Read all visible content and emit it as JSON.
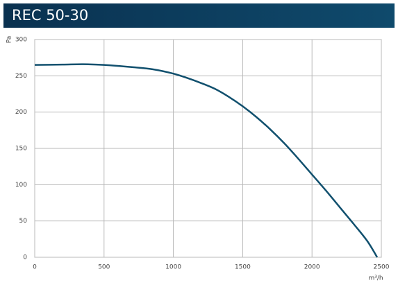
{
  "chart_data": {
    "type": "line",
    "title": "REC 50-30",
    "y_label": "Pa",
    "x_label": "m³/h",
    "x": [
      0,
      200,
      350,
      500,
      700,
      850,
      1000,
      1100,
      1200,
      1300,
      1400,
      1500,
      1600,
      1700,
      1800,
      1900,
      2000,
      2100,
      2200,
      2300,
      2400,
      2470
    ],
    "series": [
      {
        "name": "REC 50-30",
        "color": "#11506e",
        "values": [
          265,
          265.5,
          266,
          265,
          262,
          259,
          253,
          247,
          240,
          232,
          221,
          208,
          193,
          176,
          157,
          136,
          114,
          92,
          69,
          46,
          22,
          0
        ]
      }
    ],
    "xlim": [
      0,
      2500
    ],
    "xticks": [
      0,
      500,
      1000,
      1500,
      2000,
      2500
    ],
    "ylim": [
      0,
      300
    ],
    "yticks": [
      0,
      50,
      100,
      150,
      200,
      250,
      300
    ],
    "grid": true
  }
}
